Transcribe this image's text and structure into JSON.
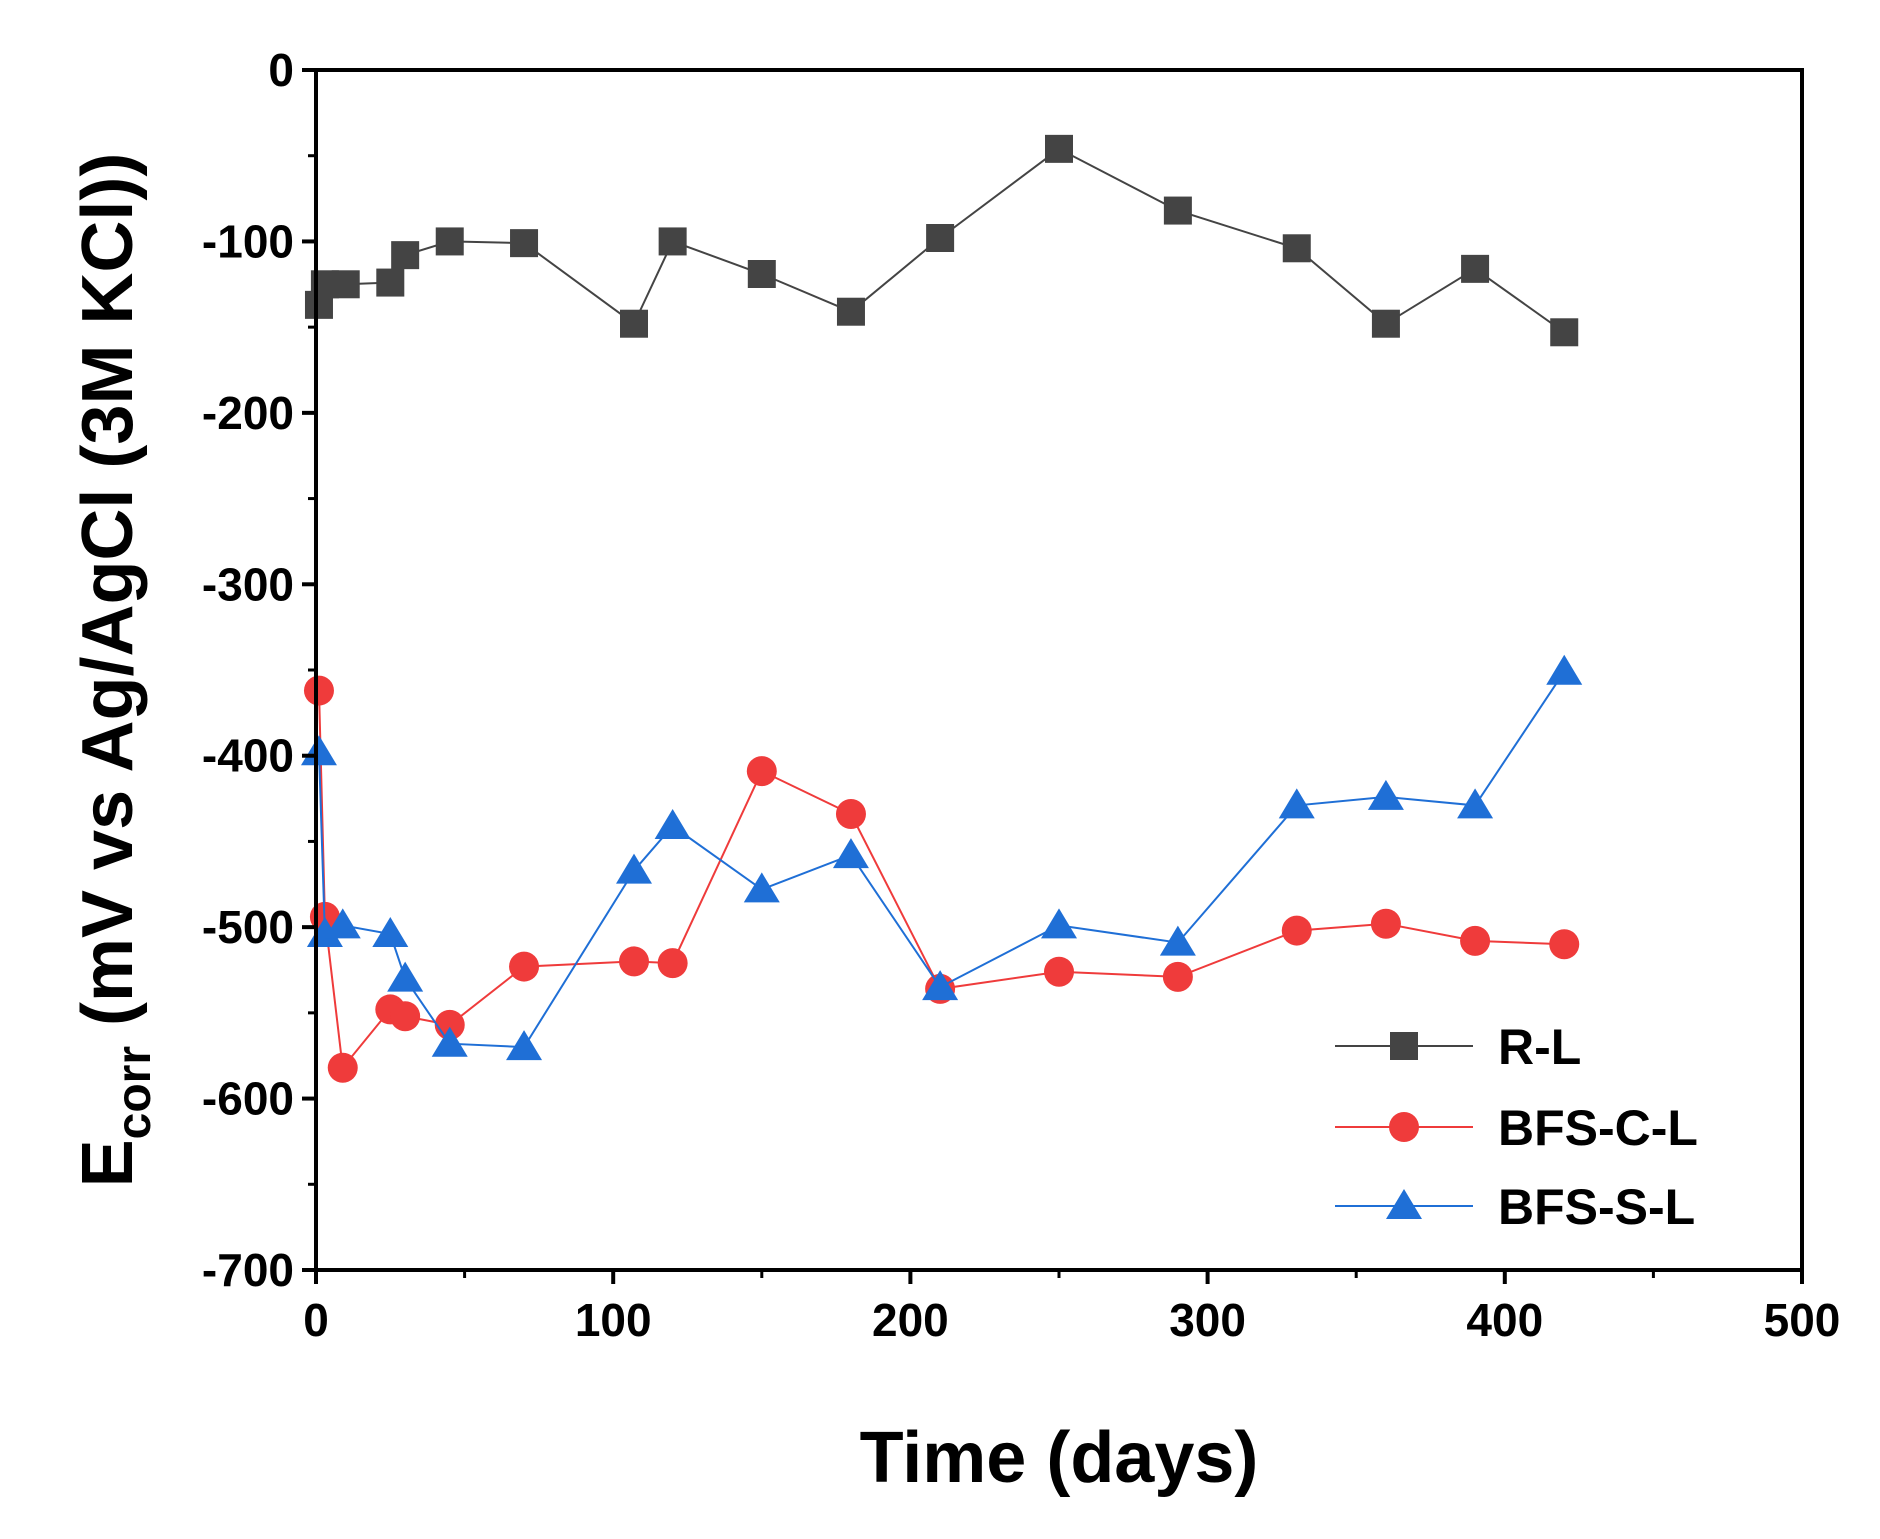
{
  "chart_data": {
    "type": "line",
    "title": "",
    "xlabel": "Time (days)",
    "ylabel": {
      "main": "E",
      "subscript": "corr",
      "rest": " (mV vs Ag/AgCl (3M KCl))"
    },
    "xlim": [
      0,
      500
    ],
    "ylim": [
      -700,
      0
    ],
    "xticks": [
      0,
      100,
      200,
      300,
      400,
      500
    ],
    "yticks": [
      0,
      -100,
      -200,
      -300,
      -400,
      -500,
      -600,
      -700
    ],
    "xtick_labels": [
      "0",
      "100",
      "200",
      "300",
      "400",
      "500"
    ],
    "ytick_labels": [
      "0",
      "-100",
      "-200",
      "-300",
      "-400",
      "-500",
      "-600",
      "-700"
    ],
    "grid": false,
    "legend_position": "bottom-right",
    "series": [
      {
        "name": "R-L",
        "color": "#444444",
        "marker": "square",
        "x": [
          1,
          3,
          10,
          25,
          30,
          45,
          70,
          107,
          120,
          150,
          180,
          210,
          250,
          290,
          330,
          360,
          390,
          420
        ],
        "y": [
          -137,
          -125,
          -125,
          -124,
          -108,
          -100,
          -101,
          -148,
          -100,
          -119,
          -141,
          -98,
          -46,
          -82,
          -104,
          -148,
          -116,
          -153
        ]
      },
      {
        "name": "BFS-C-L",
        "color": "#ef3b3b",
        "marker": "circle",
        "x": [
          1,
          3,
          9,
          25,
          30,
          45,
          70,
          107,
          120,
          150,
          180,
          210,
          250,
          290,
          330,
          360,
          390,
          420
        ],
        "y": [
          -362,
          -494,
          -582,
          -548,
          -552,
          -557,
          -523,
          -520,
          -521,
          -409,
          -434,
          -536,
          -526,
          -529,
          -502,
          -498,
          -508,
          -510
        ]
      },
      {
        "name": "BFS-S-L",
        "color": "#1f6fd6",
        "marker": "triangle",
        "x": [
          1,
          3,
          9,
          25,
          30,
          45,
          70,
          107,
          120,
          150,
          180,
          210,
          250,
          290,
          330,
          360,
          390,
          420
        ],
        "y": [
          -398,
          -504,
          -499,
          -504,
          -530,
          -568,
          -570,
          -467,
          -441,
          -478,
          -458,
          -535,
          -499,
          -509,
          -429,
          -424,
          -429,
          -351
        ]
      }
    ]
  }
}
